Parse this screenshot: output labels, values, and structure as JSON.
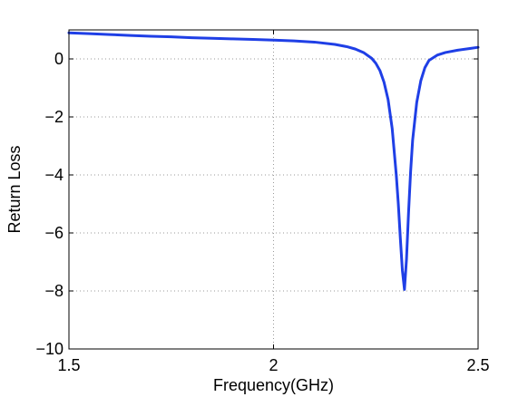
{
  "chart_data": {
    "type": "line",
    "title": "",
    "xlabel": "Frequency(GHz)",
    "ylabel": "Return Loss",
    "xlim": [
      1.5,
      2.5
    ],
    "ylim": [
      -10,
      1
    ],
    "x_ticks": [
      1.5,
      2,
      2.5
    ],
    "x_tick_labels": [
      "1.5",
      "2",
      "2.5"
    ],
    "y_ticks": [
      0,
      -2,
      -4,
      -6,
      -8,
      -10
    ],
    "y_tick_labels": [
      "0",
      "−2",
      "−4",
      "−6",
      "−8",
      "−10"
    ],
    "grid": true,
    "legend": "none",
    "series": [
      {
        "color": "#1f3fe6",
        "x": [
          1.5,
          1.55,
          1.6,
          1.65,
          1.7,
          1.75,
          1.8,
          1.85,
          1.9,
          1.95,
          2.0,
          2.05,
          2.1,
          2.15,
          2.18,
          2.2,
          2.22,
          2.24,
          2.25,
          2.26,
          2.27,
          2.28,
          2.29,
          2.3,
          2.305,
          2.31,
          2.315,
          2.32,
          2.325,
          2.33,
          2.335,
          2.34,
          2.35,
          2.36,
          2.37,
          2.38,
          2.4,
          2.42,
          2.45,
          2.48,
          2.5
        ],
        "y": [
          0.9,
          0.87,
          0.84,
          0.81,
          0.78,
          0.76,
          0.73,
          0.71,
          0.69,
          0.67,
          0.65,
          0.62,
          0.58,
          0.5,
          0.42,
          0.34,
          0.22,
          0.02,
          -0.15,
          -0.4,
          -0.8,
          -1.4,
          -2.4,
          -4.0,
          -5.0,
          -6.2,
          -7.3,
          -7.95,
          -6.9,
          -5.3,
          -3.9,
          -2.8,
          -1.5,
          -0.75,
          -0.3,
          -0.05,
          0.13,
          0.22,
          0.3,
          0.36,
          0.4
        ]
      }
    ]
  }
}
